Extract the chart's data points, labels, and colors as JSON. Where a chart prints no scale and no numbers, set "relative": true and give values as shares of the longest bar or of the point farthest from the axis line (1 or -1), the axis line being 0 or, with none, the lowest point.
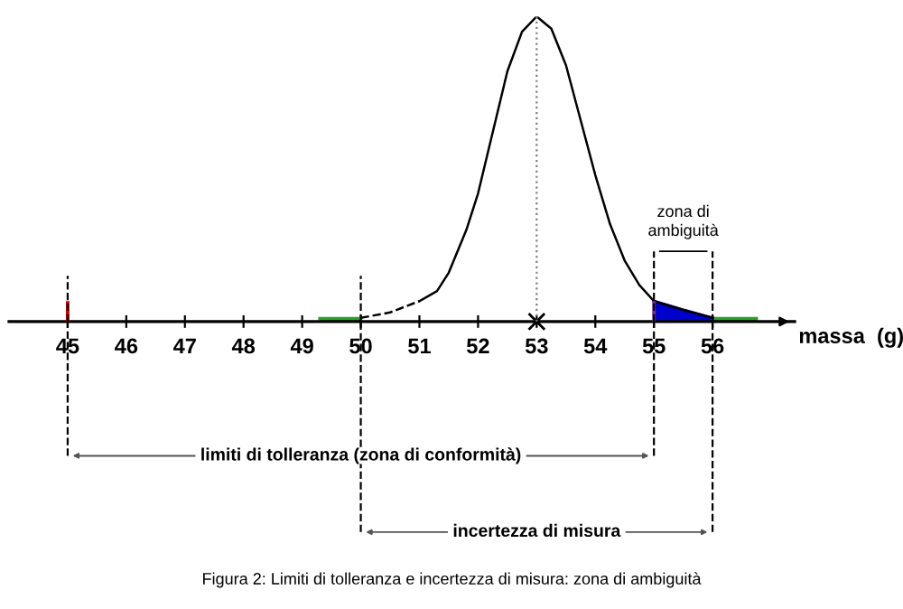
{
  "chart_data": {
    "type": "line",
    "relative": true,
    "xlabel": "massa  (g)",
    "xlim": [
      44,
      57.4
    ],
    "xticks": [
      45,
      46,
      47,
      48,
      49,
      50,
      51,
      52,
      53,
      54,
      55,
      56
    ],
    "series": [
      {
        "type": "area",
        "color": "#2ca02c",
        "x": [
          49.3,
          50
        ],
        "values": [
          0.01,
          0.01
        ]
      },
      {
        "type": "area",
        "color": "#2ca02c",
        "x": [
          56,
          56.75
        ],
        "values": [
          0.01,
          0.01
        ]
      },
      {
        "type": "area",
        "color": "#0000cc",
        "x": [
          55,
          55.5,
          56
        ],
        "values": [
          0.067,
          0.038,
          0.012
        ]
      },
      {
        "color": "#000000",
        "line_style": "dashed",
        "x": [
          50,
          50.5,
          51
        ],
        "values": [
          0.012,
          0.03,
          0.067
        ]
      },
      {
        "color": "#000000",
        "line_style": "solid",
        "x": [
          51,
          51.3,
          51.5,
          51.8,
          52,
          52.3,
          52.5,
          52.75,
          53,
          53.25,
          53.5,
          53.75,
          54,
          54.25,
          54.5,
          54.75,
          55,
          55.5,
          56
        ],
        "values": [
          0.067,
          0.1,
          0.16,
          0.3,
          0.42,
          0.66,
          0.82,
          0.95,
          1.0,
          0.96,
          0.84,
          0.66,
          0.48,
          0.32,
          0.2,
          0.12,
          0.067,
          0.038,
          0.012
        ]
      },
      {
        "type": "bar",
        "colors": [
          "#cc0000",
          "#7030a0"
        ],
        "x": [
          45,
          55
        ],
        "values": [
          0.067,
          0.067
        ]
      },
      {
        "type": "scatter",
        "color": "#000000",
        "marker": "cross",
        "x": [
          53
        ],
        "values": [
          0
        ]
      }
    ],
    "ref_lines": [
      {
        "axis": "x",
        "value": 53,
        "color": "#808080",
        "line_style": "dotted"
      },
      {
        "axis": "x",
        "value": 45,
        "color": "#000000",
        "line_style": "dashed"
      },
      {
        "axis": "x",
        "value": 50,
        "color": "#000000",
        "line_style": "dashed"
      },
      {
        "axis": "x",
        "value": 55,
        "color": "#000000",
        "line_style": "dashed"
      },
      {
        "axis": "x",
        "value": 56,
        "color": "#000000",
        "line_style": "dashed"
      }
    ],
    "annotations": [
      "zona di\nambiguità",
      "limiti di tolleranza (zona di conformità)",
      "incertezza di misura",
      "Figura 2: Limiti di tolleranza e incertezza di misura: zona di ambiguità"
    ],
    "grid": false
  }
}
